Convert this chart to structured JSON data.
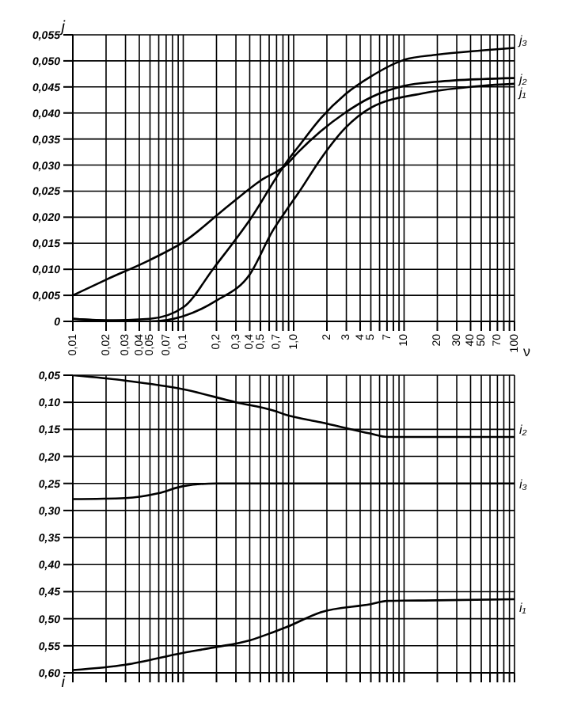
{
  "chart_data": [
    {
      "type": "line",
      "ylabel": "j",
      "xlabel": "ν",
      "log": "x",
      "grid": true,
      "legend": false,
      "marker": "none",
      "line_style": "solid",
      "xlim": [
        0.01,
        100
      ],
      "xticks": [
        {
          "value": 0.01,
          "label": "0,01"
        },
        {
          "value": 0.02,
          "label": "0,02"
        },
        {
          "value": 0.03,
          "label": "0,03"
        },
        {
          "value": 0.04,
          "label": "0,04"
        },
        {
          "value": 0.05,
          "label": "0,05"
        },
        {
          "value": 0.06,
          "label": null
        },
        {
          "value": 0.07,
          "label": "0,07"
        },
        {
          "value": 0.08,
          "label": null
        },
        {
          "value": 0.09,
          "label": null
        },
        {
          "value": 0.1,
          "label": "0,1"
        },
        {
          "value": 0.2,
          "label": "0,2"
        },
        {
          "value": 0.3,
          "label": "0,3"
        },
        {
          "value": 0.4,
          "label": "0,4"
        },
        {
          "value": 0.5,
          "label": "0,5"
        },
        {
          "value": 0.6,
          "label": null
        },
        {
          "value": 0.7,
          "label": "0,7"
        },
        {
          "value": 0.8,
          "label": null
        },
        {
          "value": 0.9,
          "label": null
        },
        {
          "value": 1,
          "label": "1,0"
        },
        2,
        3,
        4,
        5,
        {
          "value": 6,
          "label": null
        },
        7,
        {
          "value": 8,
          "label": null
        },
        {
          "value": 9,
          "label": null
        },
        10,
        20,
        30,
        40,
        50,
        {
          "value": 60,
          "label": null
        },
        70,
        {
          "value": 80,
          "label": null
        },
        {
          "value": 90,
          "label": null
        },
        100
      ],
      "ylim": [
        0,
        0.055
      ],
      "yticks": [
        0,
        {
          "value": 0.005,
          "label": "0,005"
        },
        {
          "value": 0.01,
          "label": "0,010"
        },
        {
          "value": 0.015,
          "label": "0,015"
        },
        {
          "value": 0.02,
          "label": "0,020"
        },
        {
          "value": 0.025,
          "label": "0,025"
        },
        {
          "value": 0.03,
          "label": "0,030"
        },
        {
          "value": 0.035,
          "label": "0,035"
        },
        {
          "value": 0.04,
          "label": "0,040"
        },
        {
          "value": 0.045,
          "label": "0,045"
        },
        {
          "value": 0.05,
          "label": "0,050"
        },
        {
          "value": 0.055,
          "label": "0,055"
        }
      ],
      "series": [
        {
          "name": "j₃",
          "color": "#000000",
          "x": [
            0.01,
            0.02,
            0.05,
            0.1,
            0.19,
            0.41,
            0.85,
            1.1,
            1.76,
            2.9,
            5,
            10,
            20,
            50,
            100
          ],
          "values": [
            0.0005,
            0.0002,
            0.0005,
            0.0027,
            0.0103,
            0.0198,
            0.0304,
            0.0335,
            0.039,
            0.0435,
            0.047,
            0.0502,
            0.0512,
            0.052,
            0.0525
          ]
        },
        {
          "name": "j₂",
          "color": "#000000",
          "x": [
            0.01,
            0.02,
            0.05,
            0.1,
            0.26,
            0.5,
            0.85,
            1.1,
            1.76,
            2.9,
            5,
            10,
            20,
            50,
            100
          ],
          "values": [
            0.005,
            0.008,
            0.0118,
            0.0152,
            0.0223,
            0.027,
            0.03,
            0.0325,
            0.0365,
            0.04,
            0.043,
            0.0452,
            0.046,
            0.0465,
            0.0467
          ]
        },
        {
          "name": "j₁",
          "color": "#000000",
          "x": [
            0.01,
            0.02,
            0.05,
            0.1,
            0.2,
            0.4,
            0.65,
            0.85,
            1.1,
            1.76,
            2.9,
            5,
            15,
            50,
            100
          ],
          "values": [
            0.0005,
            0.0002,
            0.0,
            0.001,
            0.004,
            0.009,
            0.0175,
            0.0212,
            0.0246,
            0.0312,
            0.037,
            0.041,
            0.0438,
            0.0452,
            0.0456
          ]
        }
      ]
    },
    {
      "type": "line",
      "ylabel": "i",
      "log": "x",
      "grid": true,
      "legend": false,
      "marker": "none",
      "line_style": "solid",
      "tick_labels": "y",
      "xlim": [
        0.01,
        100
      ],
      "xticks": [
        0.01,
        0.02,
        0.03,
        0.04,
        0.05,
        0.06,
        0.07,
        0.08,
        0.09,
        0.1,
        0.2,
        0.3,
        0.4,
        0.5,
        0.6,
        0.7,
        0.8,
        0.9,
        1,
        2,
        3,
        4,
        5,
        6,
        7,
        8,
        9,
        10,
        20,
        30,
        40,
        50,
        60,
        70,
        80,
        90,
        100
      ],
      "ylim": [
        0.6,
        0.05
      ],
      "yticks": [
        {
          "value": 0.05,
          "label": "0,05"
        },
        {
          "value": 0.1,
          "label": "0,10"
        },
        {
          "value": 0.15,
          "label": "0,15"
        },
        {
          "value": 0.2,
          "label": "0,20"
        },
        {
          "value": 0.25,
          "label": "0,25"
        },
        {
          "value": 0.3,
          "label": "0,30"
        },
        {
          "value": 0.35,
          "label": "0,35"
        },
        {
          "value": 0.4,
          "label": "0,40"
        },
        {
          "value": 0.45,
          "label": "0,45"
        },
        {
          "value": 0.5,
          "label": "0,50"
        },
        {
          "value": 0.55,
          "label": "0,55"
        },
        {
          "value": 0.6,
          "label": "0,60"
        }
      ],
      "series": [
        {
          "name": "i₂",
          "color": "#000000",
          "x": [
            0.01,
            0.03,
            0.1,
            0.3,
            0.65,
            0.85,
            1.76,
            5,
            7,
            20,
            100
          ],
          "values": [
            0.05,
            0.06,
            0.076,
            0.1,
            0.115,
            0.123,
            0.137,
            0.158,
            0.164,
            0.164,
            0.164
          ]
        },
        {
          "name": "i₃",
          "color": "#000000",
          "x": [
            0.01,
            0.03,
            0.06,
            0.1,
            0.2,
            1,
            10,
            100
          ],
          "values": [
            0.279,
            0.277,
            0.268,
            0.255,
            0.25,
            0.25,
            0.25,
            0.25
          ]
        },
        {
          "name": "i₁",
          "color": "#000000",
          "x": [
            0.01,
            0.03,
            0.1,
            0.19,
            0.4,
            0.65,
            0.85,
            1.76,
            5,
            7,
            20,
            100
          ],
          "values": [
            0.595,
            0.585,
            0.563,
            0.553,
            0.54,
            0.525,
            0.516,
            0.488,
            0.473,
            0.467,
            0.466,
            0.464
          ]
        }
      ]
    }
  ]
}
